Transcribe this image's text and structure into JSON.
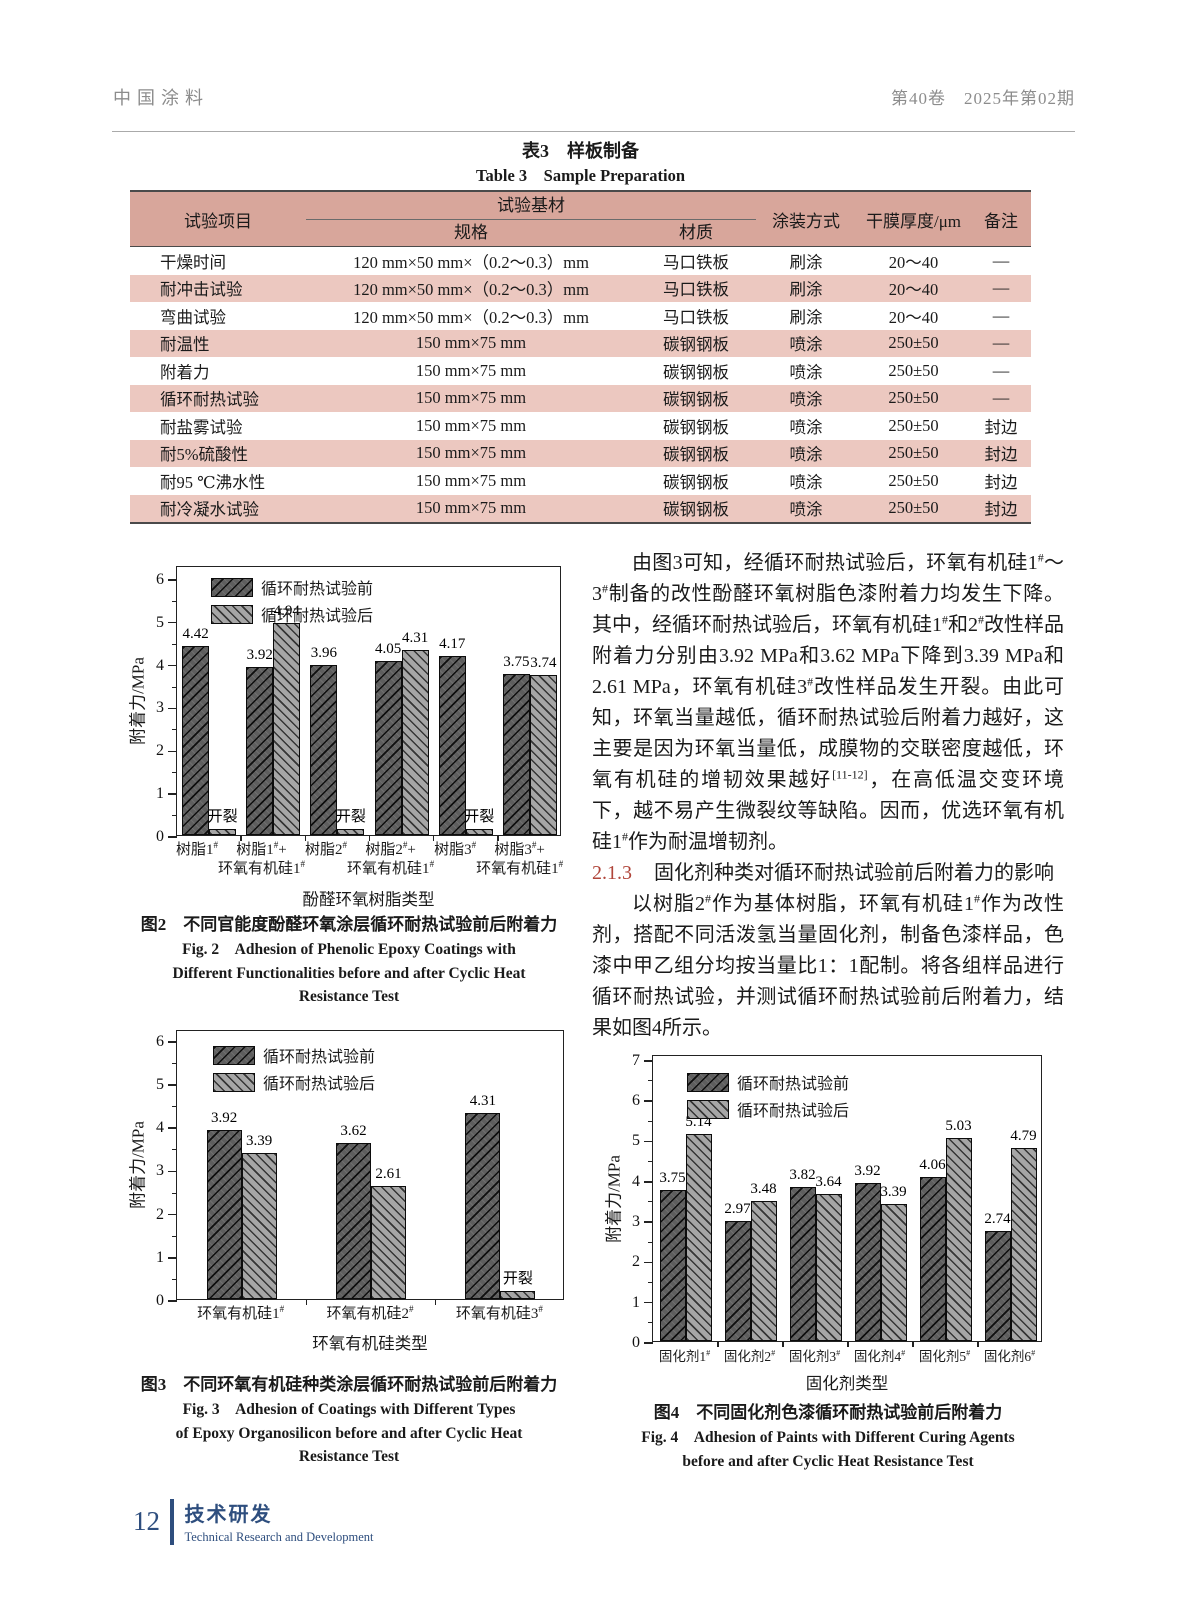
{
  "header": {
    "journal": "中国涂料",
    "volume_issue": "第40卷　2025年第02期"
  },
  "table3": {
    "title_cn": "表3　样板制备",
    "title_en": "Table 3　Sample Preparation",
    "columns": {
      "item": "试验项目",
      "substrate_group": "试验基材",
      "spec": "规格",
      "material": "材质",
      "method": "涂装方式",
      "thickness": "干膜厚度/μm",
      "note": "备注"
    },
    "rows": [
      {
        "item": "干燥时间",
        "spec": "120 mm×50 mm×（0.2～0.3）mm",
        "material": "马口铁板",
        "method": "刷涂",
        "thickness": "20～40",
        "note": "—"
      },
      {
        "item": "耐冲击试验",
        "spec": "120 mm×50 mm×（0.2～0.3）mm",
        "material": "马口铁板",
        "method": "刷涂",
        "thickness": "20～40",
        "note": "—"
      },
      {
        "item": "弯曲试验",
        "spec": "120 mm×50 mm×（0.2～0.3）mm",
        "material": "马口铁板",
        "method": "刷涂",
        "thickness": "20～40",
        "note": "—"
      },
      {
        "item": "耐温性",
        "spec": "150 mm×75 mm",
        "material": "碳钢钢板",
        "method": "喷涂",
        "thickness": "250±50",
        "note": "—"
      },
      {
        "item": "附着力",
        "spec": "150 mm×75 mm",
        "material": "碳钢钢板",
        "method": "喷涂",
        "thickness": "250±50",
        "note": "—"
      },
      {
        "item": "循环耐热试验",
        "spec": "150 mm×75 mm",
        "material": "碳钢钢板",
        "method": "喷涂",
        "thickness": "250±50",
        "note": "—"
      },
      {
        "item": "耐盐雾试验",
        "spec": "150 mm×75 mm",
        "material": "碳钢钢板",
        "method": "喷涂",
        "thickness": "250±50",
        "note": "封边"
      },
      {
        "item": "耐5%硫酸性",
        "spec": "150 mm×75 mm",
        "material": "碳钢钢板",
        "method": "喷涂",
        "thickness": "250±50",
        "note": "封边"
      },
      {
        "item": "耐95 ℃沸水性",
        "spec": "150 mm×75 mm",
        "material": "碳钢钢板",
        "method": "喷涂",
        "thickness": "250±50",
        "note": "封边"
      },
      {
        "item": "耐冷凝水试验",
        "spec": "150 mm×75 mm",
        "material": "碳钢钢板",
        "method": "喷涂",
        "thickness": "250±50",
        "note": "封边"
      }
    ]
  },
  "body_text": {
    "para1": "由图3可知，经循环耐热试验后，环氧有机硅1#～3#制备的改性酚醛环氧树脂色漆附着力均发生下降。其中，经循环耐热试验后，环氧有机硅1#和2#改性样品附着力分别由3.92 MPa和3.62 MPa下降到3.39 MPa和2.61 MPa，环氧有机硅3#改性样品发生开裂。由此可知，环氧当量越低，循环耐热试验后附着力越好，这主要是因为环氧当量低，成膜物的交联密度越低，环氧有机硅的增韧效果越好[11-12]，在高低温交变环境下，越不易产生微裂纹等缺陷。因而，优选环氧有机硅1#作为耐温增韧剂。",
    "heading_2_1_3_number": "2.1.3",
    "heading_2_1_3_title": "固化剂种类对循环耐热试验前后附着力的影响",
    "para2": "以树脂2#作为基体树脂，环氧有机硅1#作为改性剂，搭配不同活泼氢当量固化剂，制备色漆样品，色漆中甲乙组分均按当量比1：1配制。将各组样品进行循环耐热试验，并测试循环耐热试验前后附着力，结果如图4所示。"
  },
  "chart_data": [
    {
      "type": "bar",
      "ylabel": "附着力/MPa",
      "xlabel": "酚醛环氧树脂类型",
      "ylim": [
        0,
        6
      ],
      "grid": false,
      "legend_position": "top-left",
      "legend": [
        "循环耐热试验前",
        "循环耐热试验后"
      ],
      "categories": [
        "树脂1#",
        "树脂1#+环氧有机硅1#",
        "树脂2#",
        "树脂2#+环氧有机硅1#",
        "树脂3#",
        "树脂3#+环氧有机硅1#"
      ],
      "categories_lines": [
        [
          "树脂1#"
        ],
        [
          "树脂1#+",
          "环氧有机硅1#"
        ],
        [
          "树脂2#"
        ],
        [
          "树脂2#+",
          "环氧有机硅1#"
        ],
        [
          "树脂3#"
        ],
        [
          "树脂3#+",
          "环氧有机硅1#"
        ]
      ],
      "series": [
        {
          "name": "循环耐热试验前",
          "values": [
            4.42,
            3.92,
            3.96,
            4.05,
            4.17,
            3.75
          ]
        },
        {
          "name": "循环耐热试验后",
          "values": [
            null,
            4.94,
            null,
            4.31,
            null,
            3.74
          ]
        }
      ],
      "crack_label": "开裂",
      "crack_display_value": 0.13,
      "caption_cn": "图2　不同官能度酚醛环氧涂层循环耐热试验前后附着力",
      "caption_en_lines": [
        "Fig. 2　Adhesion of Phenolic Epoxy Coatings with",
        "Different Functionalities before and after Cyclic Heat",
        "Resistance Test"
      ]
    },
    {
      "type": "bar",
      "ylabel": "附着力/MPa",
      "xlabel": "环氧有机硅类型",
      "ylim": [
        0,
        6
      ],
      "grid": false,
      "legend_position": "top-left",
      "legend": [
        "循环耐热试验前",
        "循环耐热试验后"
      ],
      "categories": [
        "环氧有机硅1#",
        "环氧有机硅2#",
        "环氧有机硅3#"
      ],
      "series": [
        {
          "name": "循环耐热试验前",
          "values": [
            3.92,
            3.62,
            4.31
          ]
        },
        {
          "name": "循环耐热试验后",
          "values": [
            3.39,
            2.61,
            null
          ]
        }
      ],
      "crack_label": "开裂",
      "crack_display_value": 0.18,
      "caption_cn": "图3　不同环氧有机硅种类涂层循环耐热试验前后附着力",
      "caption_en_lines": [
        "Fig. 3　Adhesion of Coatings with Different Types",
        "of Epoxy Organosilicon before and after Cyclic Heat",
        "Resistance Test"
      ]
    },
    {
      "type": "bar",
      "ylabel": "附着力/MPa",
      "xlabel": "固化剂类型",
      "ylim": [
        0,
        7
      ],
      "grid": false,
      "legend_position": "top-left",
      "legend": [
        "循环耐热试验前",
        "循环耐热试验后"
      ],
      "categories": [
        "固化剂1#",
        "固化剂2#",
        "固化剂3#",
        "固化剂4#",
        "固化剂5#",
        "固化剂6#"
      ],
      "series": [
        {
          "name": "循环耐热试验前",
          "values": [
            3.75,
            2.97,
            3.82,
            3.92,
            4.06,
            2.74
          ]
        },
        {
          "name": "循环耐热试验后",
          "values": [
            5.14,
            3.48,
            3.64,
            3.39,
            5.03,
            4.79
          ]
        }
      ],
      "caption_cn": "图4　不同固化剂色漆循环耐热试验前后附着力",
      "caption_en_lines": [
        "Fig. 4　Adhesion of Paints with Different Curing Agents",
        "before and after Cyclic Heat Resistance Test"
      ]
    }
  ],
  "footer": {
    "page_number": "12",
    "section_cn": "技术研发",
    "section_en": "Technical Research and Development"
  },
  "colors": {
    "table_header_bg": "#d8a69b",
    "table_row_alt_bg": "#ecc8c0",
    "section_heading_red": "#b0453a",
    "footer_blue": "#2e4e7e",
    "bar_before": "#5e5e5e",
    "bar_after": "#a6a6a6"
  }
}
